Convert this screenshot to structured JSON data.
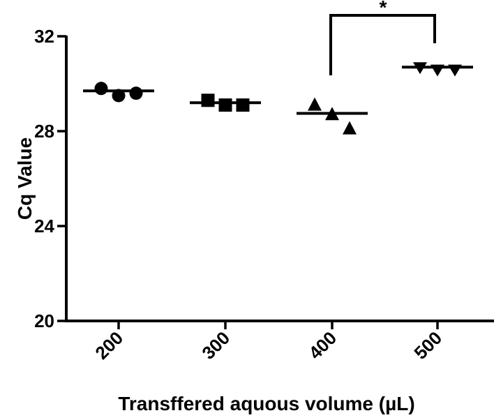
{
  "chart_data": {
    "type": "scatter",
    "title": "",
    "xlabel": "Transffered aquous volume (µL)",
    "ylabel": "Cq Value",
    "ylim": [
      20,
      32
    ],
    "yticks": [
      20,
      24,
      28,
      32
    ],
    "grid": false,
    "legend": null,
    "categories": [
      "200",
      "300",
      "400",
      "500"
    ],
    "series": [
      {
        "name": "200",
        "marker": "circle",
        "values": [
          29.8,
          29.5,
          29.6
        ],
        "mean": 29.7
      },
      {
        "name": "300",
        "marker": "square",
        "values": [
          29.3,
          29.1,
          29.1
        ],
        "mean": 29.2
      },
      {
        "name": "400",
        "marker": "triangle-up",
        "values": [
          29.1,
          28.7,
          28.1
        ],
        "mean": 28.75
      },
      {
        "name": "500",
        "marker": "triangle-down",
        "values": [
          30.7,
          30.6,
          30.6
        ],
        "mean": 30.7
      }
    ],
    "annotations": [
      {
        "type": "significance-bracket",
        "from": "400",
        "to": "500",
        "label": "*"
      }
    ]
  }
}
